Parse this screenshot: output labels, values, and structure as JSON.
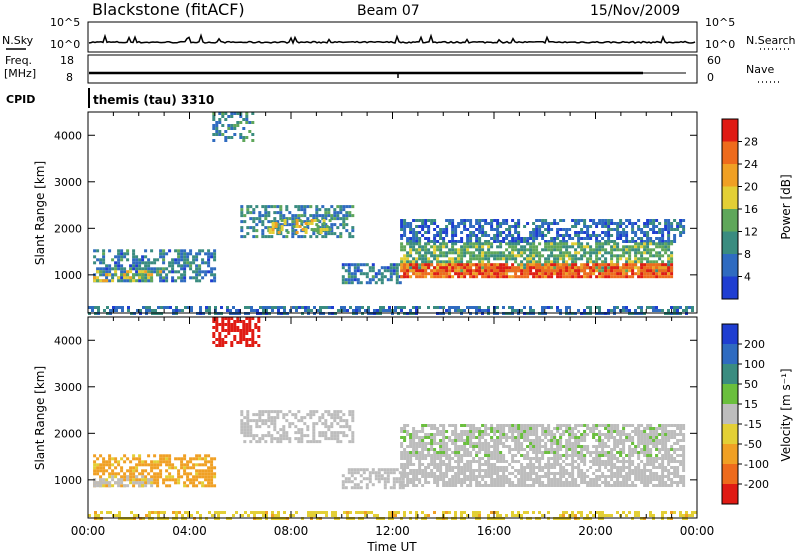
{
  "header": {
    "station": "Blackstone (fitACF)",
    "beam": "Beam 07",
    "date": "15/Nov/2009"
  },
  "status_panels": {
    "nsky_label": "N.Sky",
    "nsearch_label": "N.Search",
    "noise_ticks_left": [
      "10^5",
      "10^0"
    ],
    "noise_ticks_right": [
      "10^5",
      "10^0"
    ],
    "freq_label_1": "Freq.",
    "freq_label_2": "[MHz]",
    "freq_ticks": [
      "18",
      "8"
    ],
    "nave_label": "Nave",
    "nave_ticks": [
      "60",
      "0"
    ],
    "cpid_label": "CPID",
    "cpid_value": "themis (tau) 3310"
  },
  "chart_data": [
    {
      "type": "heatmap",
      "name": "power",
      "ylabel": "Slant Range [km]",
      "xlabel": "Time UT",
      "x_ticks": [
        "00:00",
        "04:00",
        "08:00",
        "12:00",
        "16:00",
        "20:00",
        "00:00"
      ],
      "xlim_hours": [
        0,
        24
      ],
      "y_ticks": [
        1000,
        2000,
        3000,
        4000
      ],
      "ylim_km": [
        180,
        4500
      ],
      "colorbar": {
        "label": "Power [dB]",
        "ticks": [
          "4",
          "8",
          "12",
          "16",
          "20",
          "24",
          "28"
        ],
        "colors": [
          "#1f3ed1",
          "#2f6bc0",
          "#3a8c80",
          "#5fa75a",
          "#e3cf35",
          "#f0a024",
          "#ee6b1c",
          "#e01b14"
        ]
      },
      "regions": [
        {
          "t": [
            0.2,
            5.0
          ],
          "r": [
            850,
            1550
          ],
          "v": 8,
          "d": 0.6
        },
        {
          "t": [
            0.2,
            3.0
          ],
          "r": [
            900,
            1100
          ],
          "v": 18,
          "d": 0.55
        },
        {
          "t": [
            4.9,
            6.5
          ],
          "r": [
            3900,
            4500
          ],
          "v": 10,
          "d": 0.5
        },
        {
          "t": [
            6.0,
            10.4
          ],
          "r": [
            1800,
            2500
          ],
          "v": 9,
          "d": 0.55
        },
        {
          "t": [
            7.0,
            9.5
          ],
          "r": [
            1900,
            2200
          ],
          "v": 17,
          "d": 0.5
        },
        {
          "t": [
            10.0,
            12.4
          ],
          "r": [
            850,
            1250
          ],
          "v": 8,
          "d": 0.6
        },
        {
          "t": [
            12.3,
            23.5
          ],
          "r": [
            1700,
            2200
          ],
          "v": 6,
          "d": 0.6
        },
        {
          "t": [
            12.3,
            23.0
          ],
          "r": [
            1100,
            1700
          ],
          "v": 13,
          "d": 0.75
        },
        {
          "t": [
            12.3,
            23.0
          ],
          "r": [
            950,
            1250
          ],
          "v": 27,
          "d": 0.85
        },
        {
          "t": [
            0.0,
            24.0
          ],
          "r": [
            190,
            330
          ],
          "v": 7,
          "d": 0.55
        }
      ]
    },
    {
      "type": "heatmap",
      "name": "velocity",
      "ylabel": "Slant Range [km]",
      "xlabel": "Time UT",
      "x_ticks": [
        "00:00",
        "04:00",
        "08:00",
        "12:00",
        "16:00",
        "20:00",
        "00:00"
      ],
      "xlim_hours": [
        0,
        24
      ],
      "y_ticks": [
        1000,
        2000,
        3000,
        4000
      ],
      "ylim_km": [
        180,
        4500
      ],
      "colorbar": {
        "label": "Velocity [m s⁻¹]",
        "ticks": [
          "200",
          "100",
          "50",
          "15",
          "-15",
          "-50",
          "-100",
          "-200"
        ],
        "colors": [
          "#1f3ed1",
          "#2f6bc0",
          "#3a8c80",
          "#6abf3d",
          "#bdbdbd",
          "#e3cf35",
          "#f0a024",
          "#ee6b1c",
          "#e01b14"
        ]
      },
      "regions": [
        {
          "t": [
            0.2,
            5.0
          ],
          "r": [
            900,
            1550
          ],
          "v": -60,
          "d": 0.6
        },
        {
          "t": [
            0.2,
            2.5
          ],
          "r": [
            850,
            1100
          ],
          "v": -5,
          "d": 0.55
        },
        {
          "t": [
            4.9,
            6.7
          ],
          "r": [
            3900,
            4500
          ],
          "v": -250,
          "d": 0.6
        },
        {
          "t": [
            6.0,
            10.4
          ],
          "r": [
            1800,
            2500
          ],
          "v": 0,
          "d": 0.55
        },
        {
          "t": [
            10.0,
            12.4
          ],
          "r": [
            850,
            1250
          ],
          "v": 0,
          "d": 0.6
        },
        {
          "t": [
            12.3,
            23.5
          ],
          "r": [
            900,
            2200
          ],
          "v": 0,
          "d": 0.7
        },
        {
          "t": [
            12.3,
            23.0
          ],
          "r": [
            1500,
            2200
          ],
          "v": 30,
          "d": 0.12
        },
        {
          "t": [
            0.0,
            24.0
          ],
          "r": [
            190,
            330
          ],
          "v": -40,
          "d": 0.5
        }
      ]
    }
  ]
}
